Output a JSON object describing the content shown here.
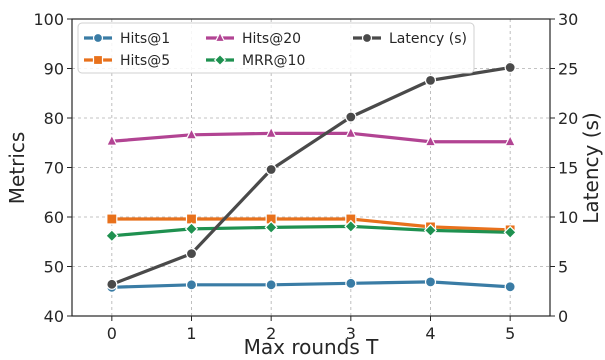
{
  "chart_data": {
    "type": "line",
    "xlabel": "Max rounds T",
    "ylabel": "Metrics",
    "y2label": "Latency (s)",
    "x": [
      0,
      1,
      2,
      3,
      4,
      5
    ],
    "xlim": [
      -0.5,
      5.5
    ],
    "ylim": [
      40,
      100
    ],
    "y2lim": [
      0,
      30
    ],
    "yticks": [
      40,
      50,
      60,
      70,
      80,
      90,
      100
    ],
    "y2ticks": [
      0,
      5,
      10,
      15,
      20,
      25,
      30
    ],
    "grid": true,
    "legend_position": "top",
    "series": [
      {
        "name": "Hits@1",
        "axis": "left",
        "color": "#3a7ca5",
        "marker": "circle",
        "values": [
          45.8,
          46.3,
          46.3,
          46.6,
          46.9,
          45.9
        ]
      },
      {
        "name": "Hits@5",
        "axis": "left",
        "color": "#e8711c",
        "marker": "square",
        "values": [
          59.6,
          59.6,
          59.6,
          59.6,
          58.0,
          57.4
        ]
      },
      {
        "name": "Hits@20",
        "axis": "left",
        "color": "#b24493",
        "marker": "triangle",
        "values": [
          75.3,
          76.6,
          76.9,
          76.9,
          75.2,
          75.2
        ]
      },
      {
        "name": "MRR@10",
        "axis": "left",
        "color": "#1f9150",
        "marker": "diamond",
        "values": [
          56.2,
          57.6,
          57.9,
          58.1,
          57.3,
          56.9
        ]
      },
      {
        "name": "Latency (s)",
        "axis": "right",
        "color": "#4a4a4a",
        "marker": "circle",
        "values": [
          3.2,
          6.3,
          14.8,
          20.1,
          23.8,
          25.1
        ]
      }
    ]
  }
}
